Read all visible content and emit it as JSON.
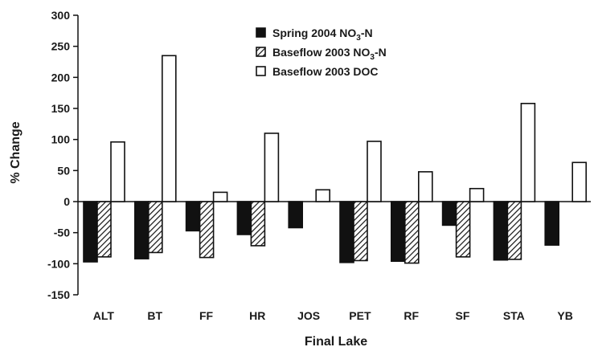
{
  "chart_data": {
    "type": "bar",
    "title": "",
    "xlabel": "Final Lake",
    "ylabel": "% Change",
    "ylim": [
      -150,
      300
    ],
    "yticks": [
      300,
      250,
      200,
      150,
      100,
      50,
      0,
      -50,
      -100,
      -150
    ],
    "grid": false,
    "legend_position": "top-center",
    "categories": [
      "ALT",
      "BT",
      "FF",
      "HR",
      "JOS",
      "PET",
      "RF",
      "SF",
      "STA",
      "YB"
    ],
    "series": [
      {
        "name": "Spring 2004 NO3-N",
        "legend_main": "Spring 2004 NO",
        "legend_sub": "3",
        "legend_tail": "-N",
        "fill": "solid",
        "color": "#111111",
        "values": [
          -97,
          -92,
          -47,
          -53,
          -42,
          -98,
          -96,
          -38,
          -94,
          -70
        ]
      },
      {
        "name": "Baseflow 2003 NO3-N",
        "legend_main": "Baseflow 2003 NO",
        "legend_sub": "3",
        "legend_tail": "-N",
        "fill": "hatched",
        "color": "#111111",
        "values": [
          -89,
          -82,
          -90,
          -71,
          null,
          -95,
          -99,
          -89,
          -93,
          null
        ]
      },
      {
        "name": "Baseflow 2003 DOC",
        "legend_main": "Baseflow 2003 DOC",
        "legend_sub": "",
        "legend_tail": "",
        "fill": "open",
        "color": "#ffffff",
        "values": [
          96,
          235,
          15,
          110,
          19,
          97,
          48,
          21,
          158,
          63
        ]
      }
    ]
  }
}
